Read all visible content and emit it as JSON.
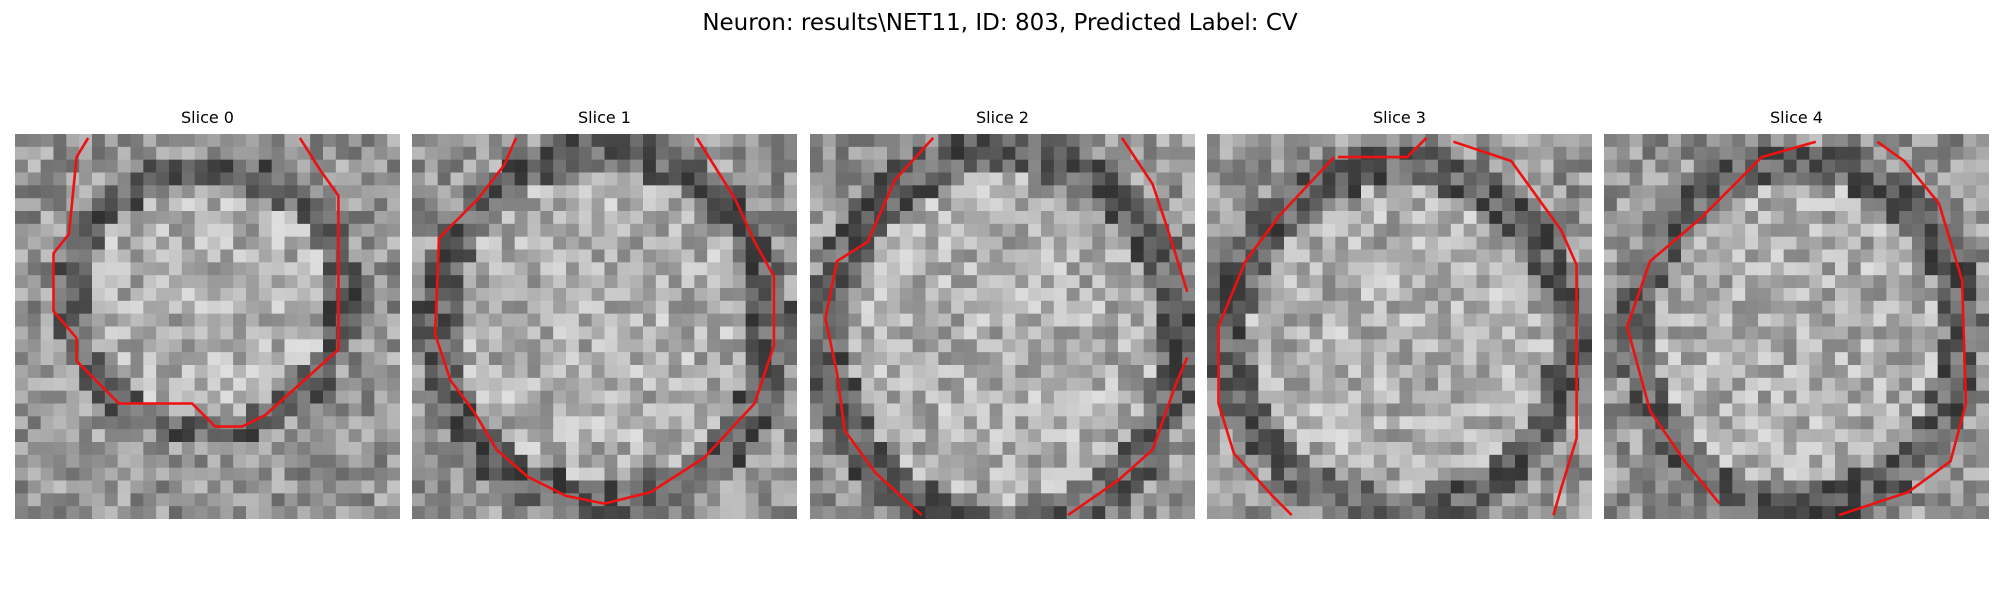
{
  "figure": {
    "title": "Neuron: results\\NET11, ID: 803, Predicted Label: CV"
  },
  "panels": [
    {
      "title": "Slice 0",
      "contour_color": "#ee1111"
    },
    {
      "title": "Slice 1",
      "contour_color": "#ee1111"
    },
    {
      "title": "Slice 2",
      "contour_color": "#ee1111"
    },
    {
      "title": "Slice 3",
      "contour_color": "#ee1111"
    },
    {
      "title": "Slice 4",
      "contour_color": "#ee1111"
    }
  ]
}
